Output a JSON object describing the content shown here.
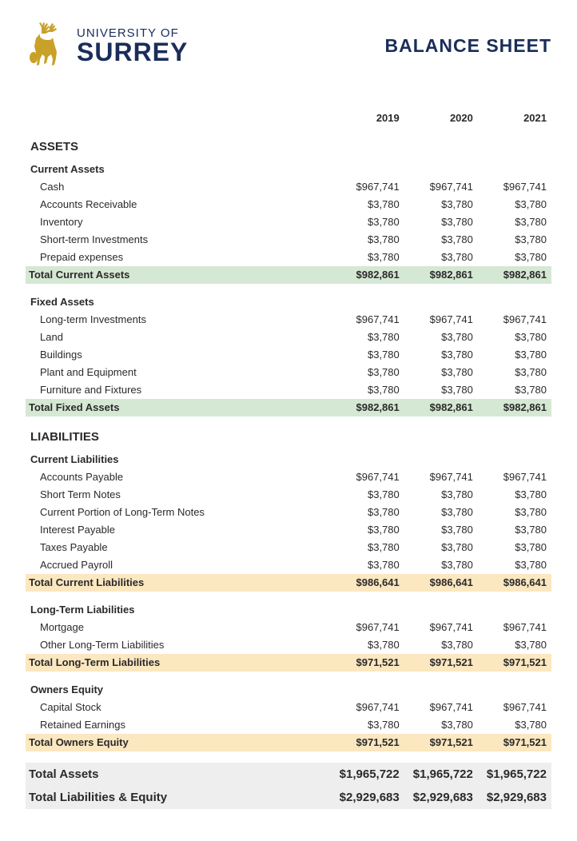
{
  "header": {
    "university_line": "UNIVERSITY OF",
    "surrey": "SURREY",
    "title": "BALANCE SHEET"
  },
  "colors": {
    "brand_navy": "#1a2d5a",
    "brand_gold": "#c9a128",
    "total_green": "#d5e8d4",
    "total_yellow": "#fbe7c0",
    "grand_bg": "#eeeeee",
    "text": "#2a2a2a",
    "background": "#ffffff"
  },
  "years": [
    "2019",
    "2020",
    "2021"
  ],
  "sections": {
    "assets": {
      "label": "ASSETS",
      "current": {
        "label": "Current Assets",
        "rows": [
          {
            "label": "Cash",
            "vals": [
              "$967,741",
              "$967,741",
              "$967,741"
            ]
          },
          {
            "label": "Accounts Receivable",
            "vals": [
              "$3,780",
              "$3,780",
              "$3,780"
            ]
          },
          {
            "label": "Inventory",
            "vals": [
              "$3,780",
              "$3,780",
              "$3,780"
            ]
          },
          {
            "label": "Short-term Investments",
            "vals": [
              "$3,780",
              "$3,780",
              "$3,780"
            ]
          },
          {
            "label": "Prepaid expenses",
            "vals": [
              "$3,780",
              "$3,780",
              "$3,780"
            ]
          }
        ],
        "total": {
          "label": "Total Current Assets",
          "vals": [
            "$982,861",
            "$982,861",
            "$982,861"
          ]
        }
      },
      "fixed": {
        "label": "Fixed Assets",
        "rows": [
          {
            "label": "Long-term Investments",
            "vals": [
              "$967,741",
              "$967,741",
              "$967,741"
            ]
          },
          {
            "label": "Land",
            "vals": [
              "$3,780",
              "$3,780",
              "$3,780"
            ]
          },
          {
            "label": "Buildings",
            "vals": [
              "$3,780",
              "$3,780",
              "$3,780"
            ]
          },
          {
            "label": "Plant and Equipment",
            "vals": [
              "$3,780",
              "$3,780",
              "$3,780"
            ]
          },
          {
            "label": "Furniture and Fixtures",
            "vals": [
              "$3,780",
              "$3,780",
              "$3,780"
            ]
          }
        ],
        "total": {
          "label": "Total Fixed Assets",
          "vals": [
            "$982,861",
            "$982,861",
            "$982,861"
          ]
        }
      }
    },
    "liabilities": {
      "label": "LIABILITIES",
      "current": {
        "label": "Current Liabilities",
        "rows": [
          {
            "label": "Accounts Payable",
            "vals": [
              "$967,741",
              "$967,741",
              "$967,741"
            ]
          },
          {
            "label": "Short Term Notes",
            "vals": [
              "$3,780",
              "$3,780",
              "$3,780"
            ]
          },
          {
            "label": "Current Portion of Long-Term Notes",
            "vals": [
              "$3,780",
              "$3,780",
              "$3,780"
            ]
          },
          {
            "label": "Interest Payable",
            "vals": [
              "$3,780",
              "$3,780",
              "$3,780"
            ]
          },
          {
            "label": "Taxes Payable",
            "vals": [
              "$3,780",
              "$3,780",
              "$3,780"
            ]
          },
          {
            "label": "Accrued Payroll",
            "vals": [
              "$3,780",
              "$3,780",
              "$3,780"
            ]
          }
        ],
        "total": {
          "label": "Total Current Liabilities",
          "vals": [
            "$986,641",
            "$986,641",
            "$986,641"
          ]
        }
      },
      "longterm": {
        "label": "Long-Term Liabilities",
        "rows": [
          {
            "label": "Mortgage",
            "vals": [
              "$967,741",
              "$967,741",
              "$967,741"
            ]
          },
          {
            "label": "Other Long-Term Liabilities",
            "vals": [
              "$3,780",
              "$3,780",
              "$3,780"
            ]
          }
        ],
        "total": {
          "label": "Total Long-Term Liabilities",
          "vals": [
            "$971,521",
            "$971,521",
            "$971,521"
          ]
        }
      },
      "equity": {
        "label": "Owners Equity",
        "rows": [
          {
            "label": "Capital Stock",
            "vals": [
              "$967,741",
              "$967,741",
              "$967,741"
            ]
          },
          {
            "label": "Retained Earnings",
            "vals": [
              "$3,780",
              "$3,780",
              "$3,780"
            ]
          }
        ],
        "total": {
          "label": "Total Owners Equity",
          "vals": [
            "$971,521",
            "$971,521",
            "$971,521"
          ]
        }
      }
    }
  },
  "grand": {
    "assets": {
      "label": "Total Assets",
      "vals": [
        "$1,965,722",
        "$1,965,722",
        "$1,965,722"
      ]
    },
    "liab_eq": {
      "label": "Total Liabilities & Equity",
      "vals": [
        "$2,929,683",
        "$2,929,683",
        "$2,929,683"
      ]
    }
  }
}
